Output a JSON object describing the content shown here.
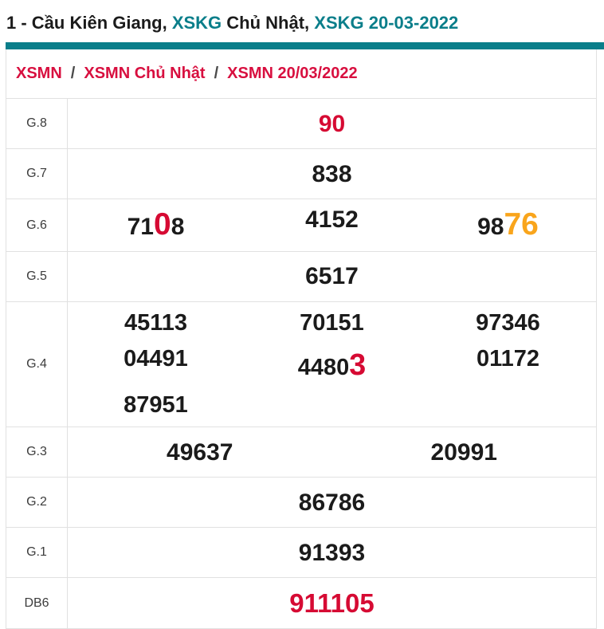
{
  "colors": {
    "teal": "#0a7e8a",
    "number_red": "#d60a33",
    "breadcrumb_red": "#d80f3f",
    "highlight_orange": "#f9a51c",
    "number_black": "#1b1b1b",
    "label_gray": "#3c3c3c",
    "border_gray": "#e1e1e1"
  },
  "title": {
    "segments": [
      {
        "text": "1 - Cầu Kiên Giang, ",
        "style": "dark"
      },
      {
        "text": "XSKG",
        "style": "teal"
      },
      {
        "text": " Chủ Nhật, ",
        "style": "dark"
      },
      {
        "text": "XSKG 20-03-2022",
        "style": "teal"
      }
    ]
  },
  "breadcrumb": {
    "separator": "/",
    "items": [
      {
        "label": "XSMN"
      },
      {
        "label": "XSMN Chủ Nhật"
      },
      {
        "label": "XSMN 20/03/2022"
      }
    ]
  },
  "results_table": {
    "rows": [
      {
        "label": "G.8",
        "lines": [
          {
            "cells": [
              [
                {
                  "t": "90",
                  "c": "red"
                }
              ]
            ]
          }
        ]
      },
      {
        "label": "G.7",
        "lines": [
          {
            "cells": [
              [
                {
                  "t": "838"
                }
              ]
            ]
          }
        ]
      },
      {
        "label": "G.6",
        "lines": [
          {
            "cells": [
              [
                {
                  "t": "71"
                },
                {
                  "t": "0",
                  "c": "red",
                  "big": true
                },
                {
                  "t": "8"
                }
              ],
              [
                {
                  "t": "4152"
                }
              ],
              [
                {
                  "t": "98"
                },
                {
                  "t": "76",
                  "c": "orange",
                  "big": true
                }
              ]
            ]
          }
        ]
      },
      {
        "label": "G.5",
        "lines": [
          {
            "cells": [
              [
                {
                  "t": "6517"
                }
              ]
            ]
          }
        ]
      },
      {
        "label": "G.4",
        "lines": [
          {
            "cells": [
              [
                {
                  "t": "45113"
                }
              ],
              [
                {
                  "t": "70151"
                }
              ],
              [
                {
                  "t": "97346"
                }
              ]
            ]
          },
          {
            "cells": [
              [
                {
                  "t": "04491"
                }
              ],
              [
                {
                  "t": "4480"
                },
                {
                  "t": "3",
                  "c": "red",
                  "big": true
                }
              ],
              [
                {
                  "t": "01172"
                }
              ]
            ]
          },
          {
            "cells": [
              [
                {
                  "t": "87951"
                }
              ],
              [],
              []
            ]
          }
        ]
      },
      {
        "label": "G.3",
        "lines": [
          {
            "cells": [
              [
                {
                  "t": "49637"
                }
              ],
              [
                {
                  "t": "20991"
                }
              ]
            ]
          }
        ]
      },
      {
        "label": "G.2",
        "lines": [
          {
            "cells": [
              [
                {
                  "t": "86786"
                }
              ]
            ]
          }
        ]
      },
      {
        "label": "G.1",
        "lines": [
          {
            "cells": [
              [
                {
                  "t": "91393"
                }
              ]
            ]
          }
        ]
      },
      {
        "label": "DB6",
        "variant": "db",
        "lines": [
          {
            "cells": [
              [
                {
                  "t": "911105",
                  "c": "red"
                }
              ]
            ]
          }
        ]
      }
    ]
  }
}
